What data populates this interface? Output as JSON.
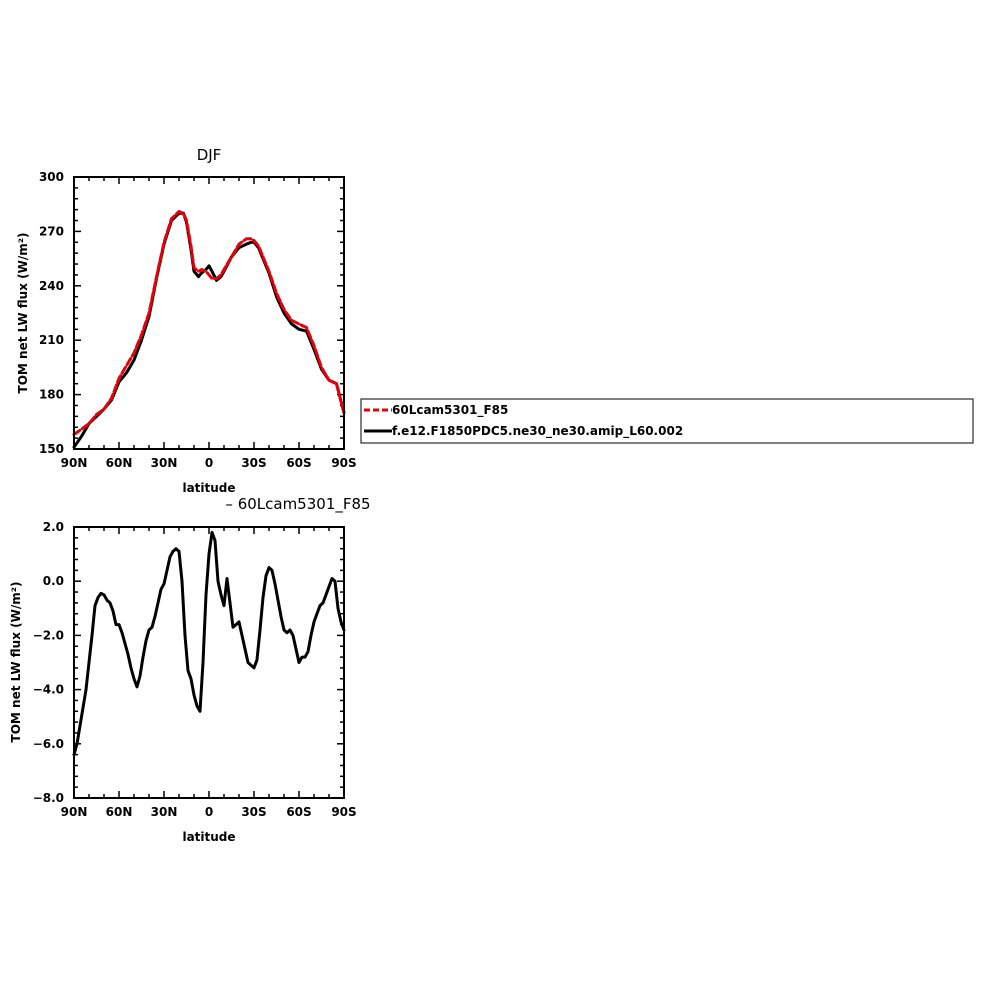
{
  "chart_data": [
    {
      "type": "line",
      "title": "DJF",
      "xlabel": "latitude",
      "ylabel": "TOM net LW flux (W/m²)",
      "xlim": [
        -90,
        90
      ],
      "ylim": [
        150,
        300
      ],
      "xticks": [
        -90,
        -60,
        -30,
        0,
        30,
        60,
        90
      ],
      "xtick_labels": [
        "90N",
        "60N",
        "30N",
        "0",
        "30S",
        "60S",
        "90S"
      ],
      "yticks": [
        150,
        180,
        210,
        240,
        270,
        300
      ],
      "ytick_labels": [
        "150",
        "180",
        "210",
        "240",
        "270",
        "300"
      ],
      "legend": "right",
      "series": [
        {
          "name": "60Lcam5301_F85",
          "color": "#e8000b",
          "dash": "dashed",
          "x": [
            -90,
            -85,
            -80,
            -75,
            -70,
            -65,
            -60,
            -55,
            -50,
            -45,
            -40,
            -35,
            -30,
            -25,
            -20,
            -17,
            -15,
            -12,
            -10,
            -7,
            -5,
            -2,
            0,
            2,
            5,
            8,
            10,
            15,
            20,
            25,
            28,
            30,
            33,
            35,
            40,
            45,
            50,
            55,
            60,
            65,
            70,
            75,
            80,
            85,
            90
          ],
          "y": [
            158,
            161,
            164,
            169,
            172,
            178,
            189,
            196,
            203,
            213,
            225,
            245,
            264,
            277,
            281,
            280,
            276,
            262,
            250,
            248,
            249,
            248,
            246,
            244,
            244,
            246,
            249,
            256,
            263,
            266,
            266,
            265,
            262,
            258,
            248,
            236,
            227,
            221,
            219,
            217,
            207,
            195,
            188,
            186,
            170
          ]
        },
        {
          "name": "f.e12.F1850PDC5.ne30_ne30.amip_L60.002",
          "color": "#000000",
          "dash": "solid",
          "x": [
            -90,
            -85,
            -80,
            -75,
            -70,
            -65,
            -60,
            -55,
            -50,
            -45,
            -40,
            -35,
            -30,
            -25,
            -20,
            -17,
            -15,
            -12,
            -10,
            -7,
            -5,
            -2,
            0,
            2,
            5,
            8,
            10,
            15,
            20,
            25,
            28,
            30,
            33,
            35,
            40,
            45,
            50,
            55,
            60,
            65,
            70,
            75,
            80,
            85,
            90
          ],
          "y": [
            151,
            157,
            164,
            168,
            172,
            177,
            187,
            192,
            199,
            210,
            223,
            244,
            263,
            276,
            280,
            280,
            275,
            260,
            248,
            245,
            247,
            249,
            251,
            248,
            243,
            245,
            248,
            256,
            261,
            263,
            264,
            264,
            261,
            257,
            247,
            234,
            225,
            219,
            216,
            215,
            205,
            194,
            188,
            186,
            170
          ]
        }
      ]
    },
    {
      "type": "line",
      "title": "– 60Lcam5301_F85",
      "xlabel": "latitude",
      "ylabel": "TOM net LW flux (W/m²)",
      "xlim": [
        -90,
        90
      ],
      "ylim": [
        -8,
        2
      ],
      "xticks": [
        -90,
        -60,
        -30,
        0,
        30,
        60,
        90
      ],
      "xtick_labels": [
        "90N",
        "60N",
        "30N",
        "0",
        "30S",
        "60S",
        "90S"
      ],
      "yticks": [
        -8,
        -6,
        -4,
        -2,
        0,
        2
      ],
      "ytick_labels": [
        "−8.0",
        "−6.0",
        "−4.0",
        "−2.0",
        "0.0",
        "2.0"
      ],
      "series": [
        {
          "color": "#000000",
          "dash": "solid",
          "x": [
            -90,
            -88,
            -85,
            -82,
            -80,
            -78,
            -76,
            -74,
            -72,
            -70,
            -68,
            -66,
            -64,
            -62,
            -60,
            -58,
            -56,
            -54,
            -52,
            -50,
            -48,
            -46,
            -44,
            -42,
            -40,
            -38,
            -36,
            -34,
            -32,
            -30,
            -28,
            -26,
            -24,
            -22,
            -20,
            -18,
            -16,
            -14,
            -12,
            -10,
            -8,
            -6,
            -4,
            -2,
            0,
            2,
            4,
            6,
            8,
            10,
            12,
            14,
            16,
            18,
            20,
            22,
            24,
            26,
            28,
            30,
            32,
            34,
            36,
            38,
            40,
            42,
            44,
            46,
            48,
            50,
            52,
            54,
            56,
            58,
            60,
            62,
            64,
            66,
            68,
            70,
            72,
            74,
            76,
            78,
            80,
            82,
            84,
            86,
            88,
            90
          ],
          "y": [
            -6.4,
            -6.0,
            -5.0,
            -4.0,
            -3.0,
            -2.0,
            -0.9,
            -0.6,
            -0.45,
            -0.5,
            -0.7,
            -0.8,
            -1.1,
            -1.6,
            -1.6,
            -1.9,
            -2.3,
            -2.7,
            -3.2,
            -3.6,
            -3.9,
            -3.5,
            -2.8,
            -2.2,
            -1.8,
            -1.7,
            -1.3,
            -0.8,
            -0.3,
            -0.1,
            0.4,
            0.9,
            1.1,
            1.2,
            1.1,
            0.0,
            -2.0,
            -3.3,
            -3.6,
            -4.2,
            -4.6,
            -4.8,
            -3.0,
            -0.5,
            1.0,
            1.8,
            1.5,
            0.0,
            -0.5,
            -0.9,
            0.1,
            -0.8,
            -1.7,
            -1.6,
            -1.5,
            -2.0,
            -2.5,
            -3.0,
            -3.1,
            -3.2,
            -2.9,
            -1.8,
            -0.6,
            0.2,
            0.5,
            0.4,
            -0.1,
            -0.7,
            -1.3,
            -1.8,
            -1.9,
            -1.8,
            -2.0,
            -2.5,
            -3.0,
            -2.8,
            -2.8,
            -2.6,
            -2.0,
            -1.5,
            -1.2,
            -0.9,
            -0.8,
            -0.5,
            -0.2,
            0.1,
            0.0,
            -1.0,
            -1.5,
            -1.8
          ]
        }
      ]
    }
  ]
}
